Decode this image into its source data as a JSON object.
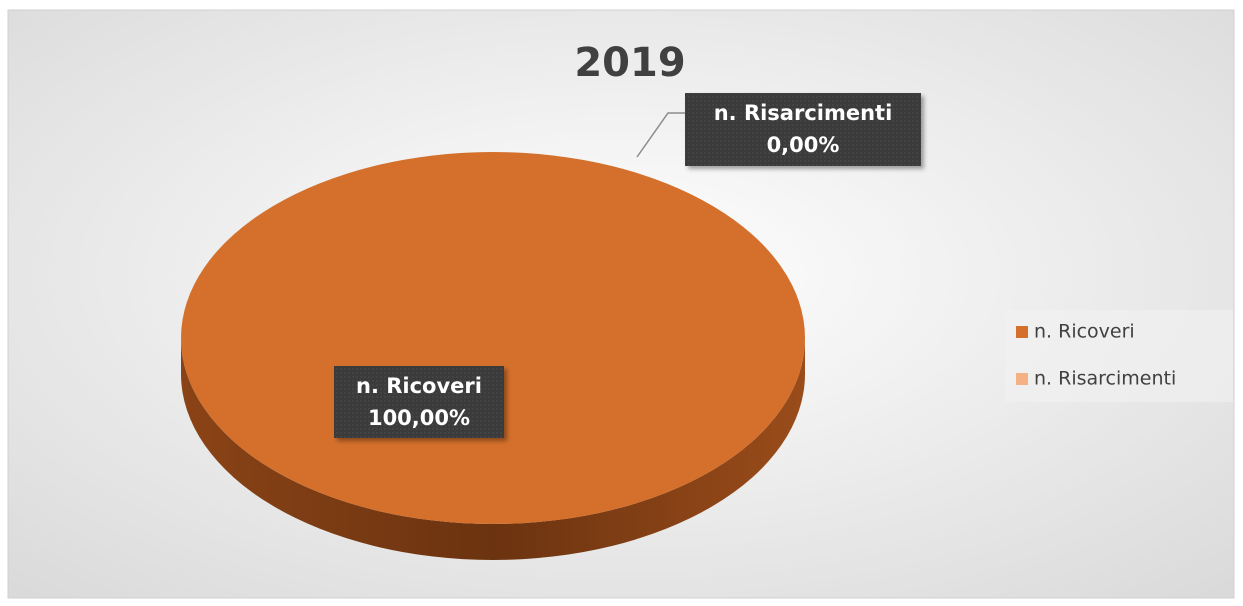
{
  "chart_data": {
    "type": "pie",
    "title": "2019",
    "categories": [
      "n. Ricoveri",
      "n. Risarcimenti"
    ],
    "values": [
      100,
      0
    ],
    "value_labels": [
      "100,00%",
      "0,00%"
    ],
    "colors": [
      "#d4702c",
      "#f4b183"
    ],
    "legend": "right"
  }
}
